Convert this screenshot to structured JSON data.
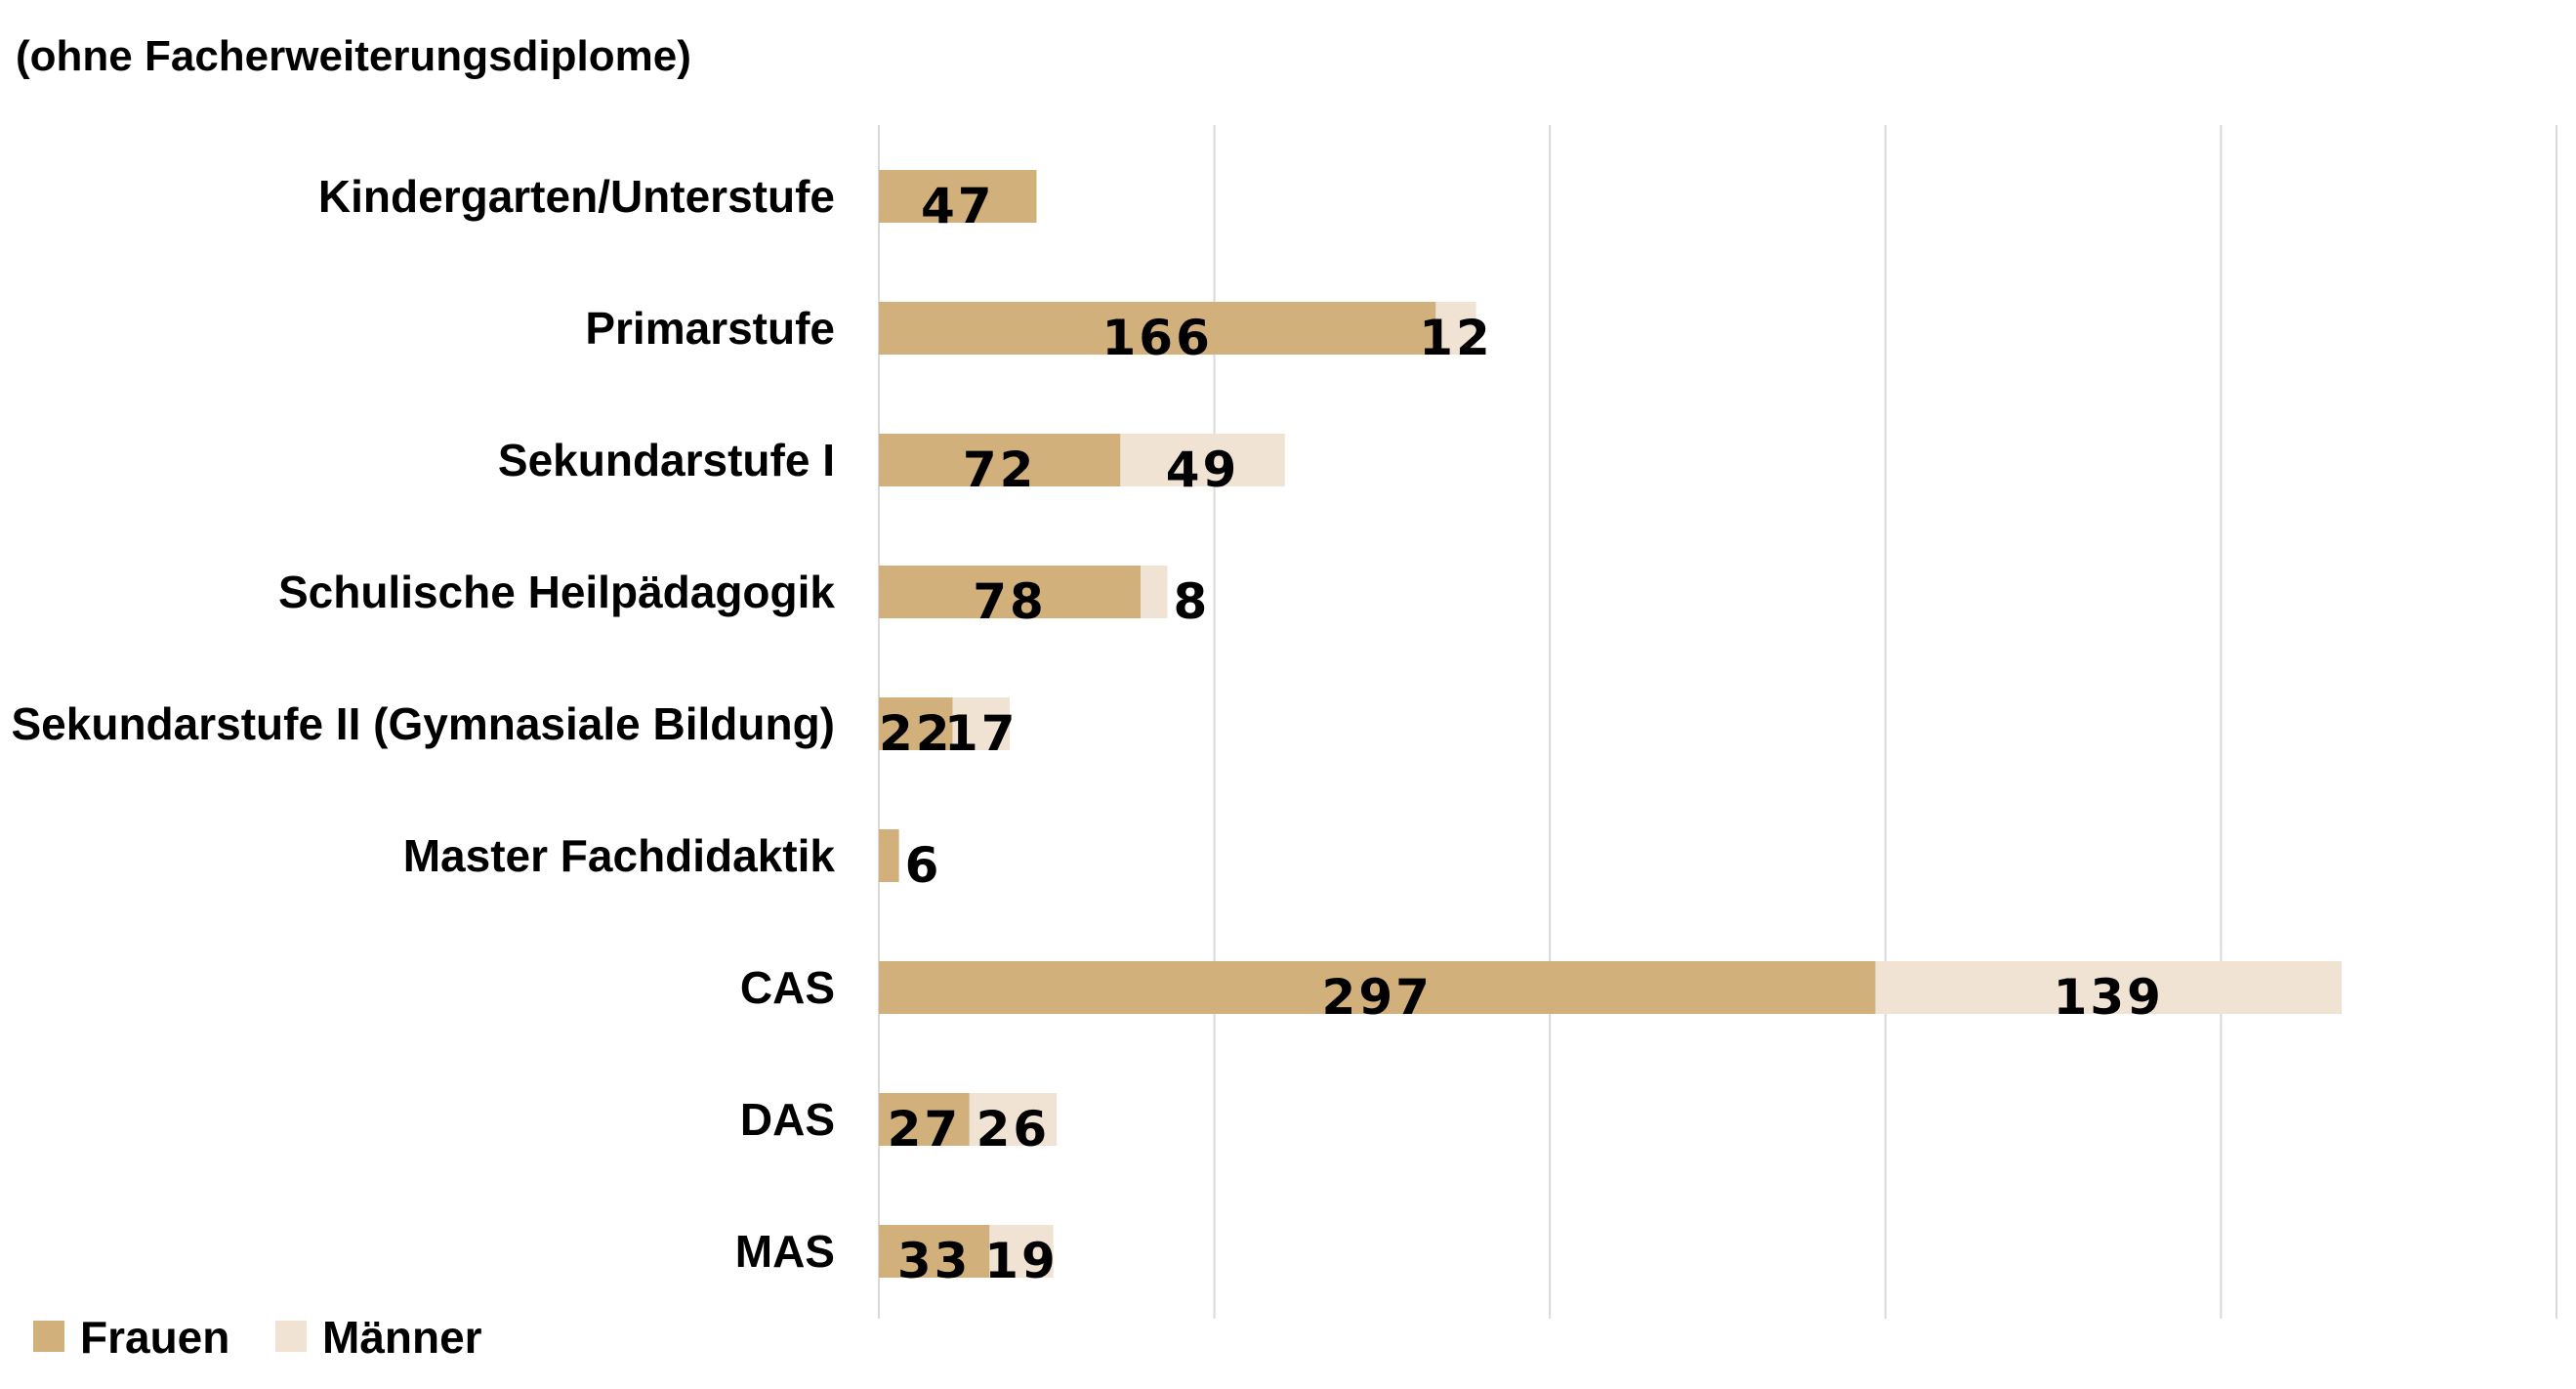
{
  "subtitle": "(ohne Facherweiterungsdiplome)",
  "colors": {
    "frauen": "#d1b07b",
    "maenner": "#f0e3d3",
    "grid": "#d9d9d9"
  },
  "chart_data": {
    "type": "bar",
    "orientation": "horizontal",
    "stacked": true,
    "categories": [
      "Kindergarten/Unterstufe",
      "Primarstufe",
      "Sekundarstufe I",
      "Schulische Heilpädagogik",
      "Sekundarstufe II (Gymnasiale Bildung)",
      "Master Fachdidaktik",
      "CAS",
      "DAS",
      "MAS"
    ],
    "series": [
      {
        "name": "Frauen",
        "values": [
          47,
          166,
          72,
          78,
          22,
          6,
          297,
          27,
          33
        ]
      },
      {
        "name": "Männer",
        "values": [
          null,
          12,
          49,
          8,
          17,
          null,
          139,
          26,
          19
        ]
      }
    ],
    "xlim": [
      0,
      500
    ],
    "grid": "vertical",
    "legend": "bottom-left"
  }
}
